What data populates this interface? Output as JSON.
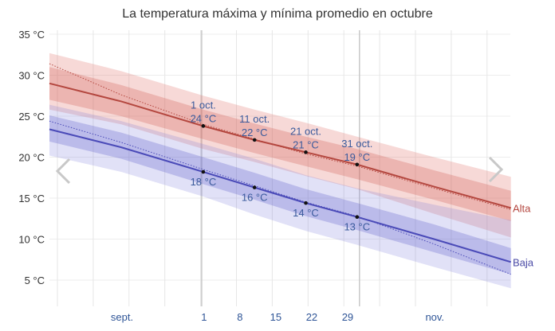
{
  "chart_data": {
    "type": "line",
    "title": "La temperatura máxima y mínima promedio en octubre",
    "xlabel": "",
    "ylabel": "",
    "xlim": [
      "09-01",
      "11-30"
    ],
    "ylim": [
      2,
      35
    ],
    "y_ticks": [
      {
        "value": 35,
        "label": "35 °C"
      },
      {
        "value": 30,
        "label": "30 °C"
      },
      {
        "value": 25,
        "label": "25 °C"
      },
      {
        "value": 20,
        "label": "20 °C"
      },
      {
        "value": 15,
        "label": "15 °C"
      },
      {
        "value": 10,
        "label": "10 °C"
      },
      {
        "value": 5,
        "label": "5 °C"
      }
    ],
    "x_ticks": [
      {
        "date": "09-15",
        "label": "sept."
      },
      {
        "date": "10-01",
        "label": "1"
      },
      {
        "date": "10-08",
        "label": "8"
      },
      {
        "date": "10-15",
        "label": "15"
      },
      {
        "date": "10-22",
        "label": "22"
      },
      {
        "date": "10-29",
        "label": "29"
      },
      {
        "date": "11-15",
        "label": "nov."
      }
    ],
    "grid": true,
    "series": [
      {
        "name": "Alta",
        "color": "#b4473f",
        "x": [
          "09-01",
          "09-15",
          "10-01",
          "10-11",
          "10-21",
          "10-31",
          "11-15",
          "11-30"
        ],
        "values": [
          29.0,
          26.8,
          23.8,
          22.1,
          20.6,
          19.1,
          16.4,
          13.8
        ],
        "dotted": [
          31.4,
          27.6,
          24.0,
          22.2,
          20.4,
          18.9,
          16.2,
          13.6
        ],
        "band_outer": [
          [
            25.8,
            32.7
          ],
          [
            24.0,
            30.5
          ],
          [
            21.0,
            27.5
          ],
          [
            19.4,
            25.8
          ],
          [
            17.7,
            24.2
          ],
          [
            16.1,
            22.5
          ],
          [
            13.1,
            20.0
          ],
          [
            10.2,
            17.6
          ]
        ],
        "band_inner": [
          [
            27.0,
            31.0
          ],
          [
            25.0,
            28.8
          ],
          [
            22.2,
            25.8
          ],
          [
            20.5,
            24.1
          ],
          [
            18.9,
            22.5
          ],
          [
            17.3,
            21.0
          ],
          [
            14.8,
            18.4
          ],
          [
            12.2,
            15.9
          ]
        ]
      },
      {
        "name": "Baja",
        "color": "#4a4ab8",
        "x": [
          "09-01",
          "09-15",
          "10-01",
          "10-11",
          "10-21",
          "10-31",
          "11-15",
          "11-30"
        ],
        "values": [
          23.4,
          21.2,
          18.2,
          16.3,
          14.4,
          12.7,
          10.0,
          7.2
        ],
        "dotted": [
          24.4,
          21.8,
          18.5,
          16.5,
          14.5,
          12.8,
          9.4,
          5.7
        ],
        "band_outer": [
          [
            20.2,
            26.4
          ],
          [
            18.2,
            24.4
          ],
          [
            15.2,
            21.6
          ],
          [
            13.0,
            19.8
          ],
          [
            11.0,
            17.8
          ],
          [
            9.3,
            16.2
          ],
          [
            6.6,
            14.2
          ],
          [
            4.0,
            12.3
          ]
        ],
        "band_inner": [
          [
            21.9,
            25.1
          ],
          [
            19.8,
            23.0
          ],
          [
            16.7,
            20.0
          ],
          [
            14.8,
            18.1
          ],
          [
            12.8,
            16.1
          ],
          [
            11.1,
            14.4
          ],
          [
            8.4,
            11.8
          ],
          [
            5.7,
            8.9
          ]
        ]
      }
    ],
    "annotations": [
      {
        "date": "10-01",
        "label": "1 oct.",
        "high": 23.8,
        "high_label": "24 °C",
        "low": 18.2,
        "low_label": "18 °C"
      },
      {
        "date": "10-11",
        "label": "11 oct.",
        "high": 22.1,
        "high_label": "22 °C",
        "low": 16.3,
        "low_label": "16 °C"
      },
      {
        "date": "10-21",
        "label": "21 oct.",
        "high": 20.6,
        "high_label": "21 °C",
        "low": 14.4,
        "low_label": "14 °C"
      },
      {
        "date": "10-31",
        "label": "31 oct.",
        "high": 19.1,
        "high_label": "19 °C",
        "low": 12.7,
        "low_label": "13 °C"
      }
    ],
    "legend": "right-end labels"
  },
  "nav": {
    "prev_icon": "chevron-left-icon",
    "next_icon": "chevron-right-icon"
  }
}
